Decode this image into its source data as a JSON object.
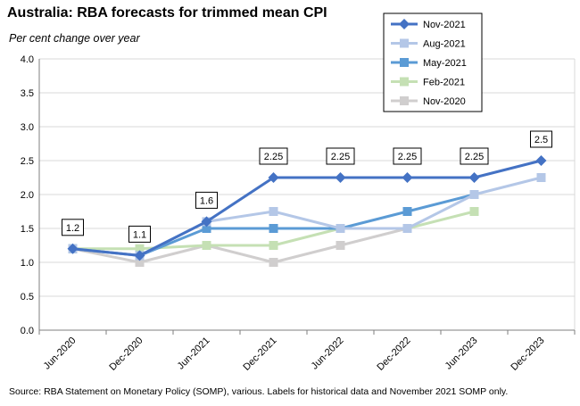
{
  "chart_data": {
    "type": "line",
    "title": "Australia: RBA forecasts for trimmed mean CPI",
    "subtitle": "Per cent change over year",
    "source": "Source: RBA Statement on Monetary Policy (SOMP), various. Labels for historical data and November 2021 SOMP only.",
    "categories": [
      "Jun-2020",
      "Dec-2020",
      "Jun-2021",
      "Dec-2021",
      "Jun-2022",
      "Dec-2022",
      "Jun-2023",
      "Dec-2023"
    ],
    "ylim": [
      0,
      4
    ],
    "yticks": [
      "0.0",
      "0.5",
      "1.0",
      "1.5",
      "2.0",
      "2.5",
      "3.0",
      "3.5",
      "4.0"
    ],
    "grid": true,
    "legend_position": "top-right",
    "series": [
      {
        "name": "Nov-2021",
        "color": "#4472c4",
        "marker": "diamond",
        "values": [
          1.2,
          1.1,
          1.6,
          2.25,
          2.25,
          2.25,
          2.25,
          2.5
        ]
      },
      {
        "name": "Aug-2021",
        "color": "#b4c7e7",
        "marker": "square",
        "values": [
          1.2,
          1.1,
          1.6,
          1.75,
          1.5,
          1.5,
          2.0,
          2.25
        ]
      },
      {
        "name": "May-2021",
        "color": "#5b9bd5",
        "marker": "square",
        "values": [
          1.2,
          1.1,
          1.5,
          1.5,
          1.5,
          1.75,
          2.0,
          null
        ]
      },
      {
        "name": "Feb-2021",
        "color": "#c5e0b4",
        "marker": "square",
        "values": [
          1.2,
          1.2,
          1.25,
          1.25,
          1.5,
          1.5,
          1.75,
          null
        ]
      },
      {
        "name": "Nov-2020",
        "color": "#d0cece",
        "marker": "square",
        "values": [
          1.2,
          1.0,
          1.25,
          1.0,
          1.25,
          1.5,
          null,
          null
        ]
      }
    ],
    "data_labels": [
      {
        "index": 0,
        "value": 1.2,
        "text": "1.2"
      },
      {
        "index": 1,
        "value": 1.1,
        "text": "1.1"
      },
      {
        "index": 2,
        "value": 1.6,
        "text": "1.6"
      },
      {
        "index": 3,
        "value": 2.25,
        "text": "2.25"
      },
      {
        "index": 4,
        "value": 2.25,
        "text": "2.25"
      },
      {
        "index": 5,
        "value": 2.25,
        "text": "2.25"
      },
      {
        "index": 6,
        "value": 2.25,
        "text": "2.25"
      },
      {
        "index": 7,
        "value": 2.5,
        "text": "2.5"
      }
    ]
  }
}
